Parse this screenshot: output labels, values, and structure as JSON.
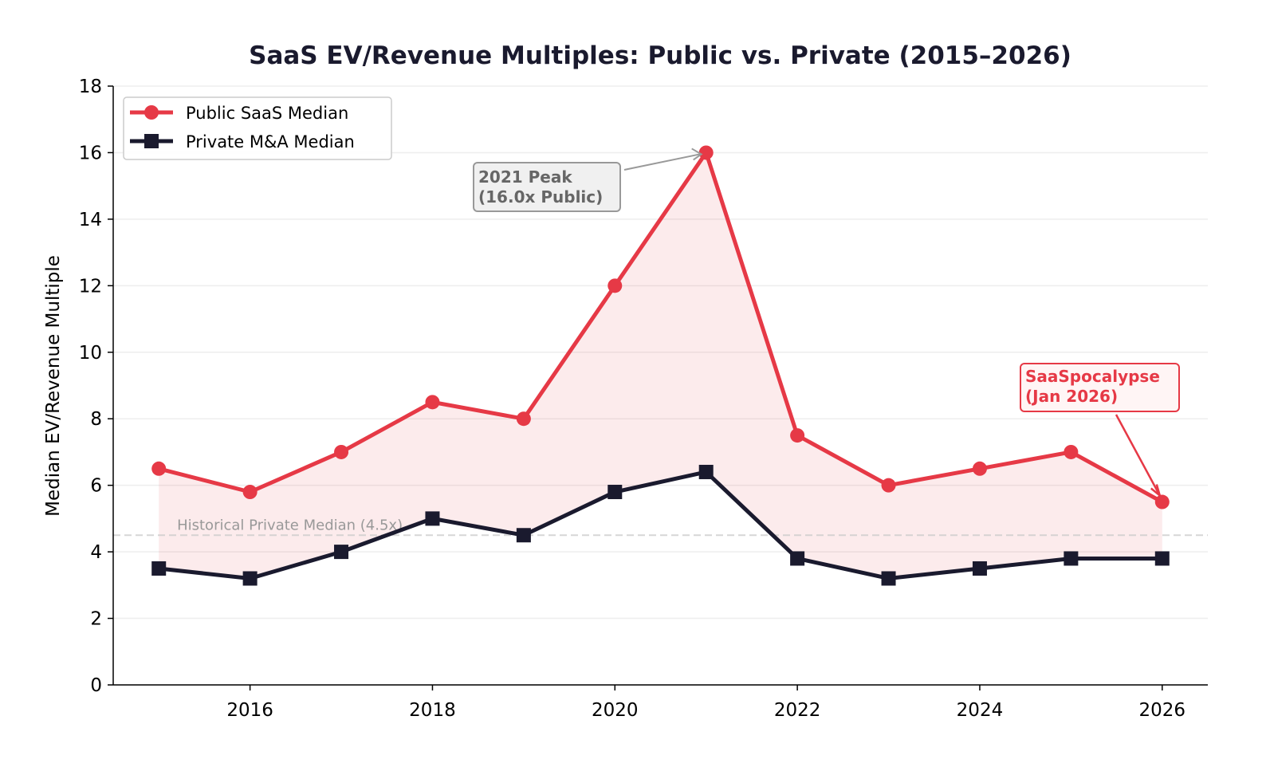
{
  "chart_data": {
    "type": "line",
    "title": "SaaS EV/Revenue Multiples: Public vs. Private (2015–2026)",
    "xlabel": "",
    "ylabel": "Median EV/Revenue Multiple",
    "x": [
      2015,
      2016,
      2017,
      2018,
      2019,
      2020,
      2021,
      2022,
      2023,
      2024,
      2025,
      2026
    ],
    "series": [
      {
        "name": "Public SaaS Median",
        "marker": "circle",
        "color": "#e63946",
        "values": [
          6.5,
          5.8,
          7.0,
          8.5,
          8.0,
          12.0,
          16.0,
          7.5,
          6.0,
          6.5,
          7.0,
          5.5
        ]
      },
      {
        "name": "Private M&A Median",
        "marker": "square",
        "color": "#1a1a2e",
        "values": [
          3.5,
          3.2,
          4.0,
          5.0,
          4.5,
          5.8,
          6.4,
          3.8,
          3.2,
          3.5,
          3.8,
          3.8
        ]
      }
    ],
    "fill_between": {
      "color": "#e63946",
      "between": [
        "Public SaaS Median",
        "Private M&A Median"
      ]
    },
    "xlim": [
      2014.5,
      2026.5
    ],
    "ylim": [
      0,
      18
    ],
    "xticks": [
      "2016",
      "2018",
      "2020",
      "2022",
      "2024",
      "2026"
    ],
    "yticks": [
      "0",
      "2",
      "4",
      "6",
      "8",
      "10",
      "12",
      "14",
      "16",
      "18"
    ],
    "grid": "horizontal",
    "legend": "top-left",
    "reference_line": {
      "y": 4.5,
      "label": "Historical Private Median (4.5x)",
      "style": "dashed"
    },
    "annotations": [
      {
        "text_lines": [
          "2021 Peak",
          "(16.0x Public)"
        ],
        "x": 2021,
        "y": 16.0,
        "color": "#666666"
      },
      {
        "text_lines": [
          "SaaSpocalypse",
          "(Jan 2026)"
        ],
        "x": 2026,
        "y": 5.5,
        "color": "#e63946"
      }
    ]
  }
}
